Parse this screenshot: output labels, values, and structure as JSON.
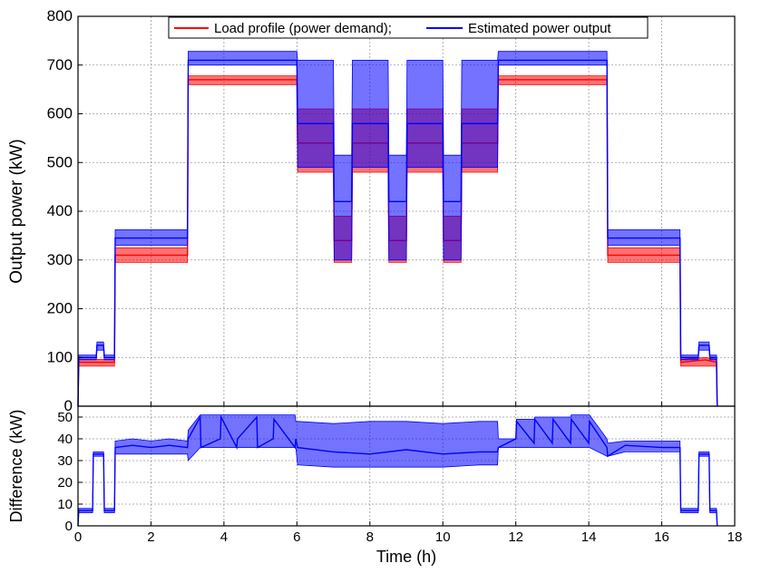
{
  "chart_data": [
    {
      "type": "line",
      "ylabel": "Output power (kW)",
      "xlim": [
        0,
        18
      ],
      "ylim": [
        0,
        800
      ],
      "xticks": [
        0,
        2,
        4,
        6,
        8,
        10,
        12,
        14,
        16,
        18
      ],
      "yticks": [
        0,
        100,
        200,
        300,
        400,
        500,
        600,
        700,
        800
      ],
      "grid": true,
      "legend_position": "top",
      "series": [
        {
          "name": "Load profile (power demand);",
          "color": "#ff0000",
          "x": [
            0,
            0.02,
            0.5,
            1.0,
            1.02,
            3.0,
            3.02,
            6.0,
            6.02,
            7.0,
            7.02,
            7.5,
            7.52,
            8.5,
            8.52,
            9.0,
            9.02,
            10.0,
            10.02,
            10.5,
            10.52,
            11.5,
            11.52,
            14.5,
            14.52,
            16.5,
            16.52,
            17.2,
            17.5,
            17.52
          ],
          "values": [
            0,
            90,
            90,
            90,
            310,
            310,
            670,
            670,
            540,
            540,
            340,
            340,
            540,
            540,
            340,
            340,
            540,
            540,
            340,
            340,
            540,
            540,
            670,
            670,
            310,
            310,
            90,
            95,
            90,
            0
          ],
          "band_low": [
            0,
            82,
            82,
            82,
            295,
            295,
            660,
            660,
            480,
            480,
            295,
            295,
            480,
            480,
            295,
            295,
            480,
            480,
            295,
            295,
            480,
            480,
            660,
            660,
            295,
            295,
            82,
            82,
            82,
            0
          ],
          "band_high": [
            0,
            96,
            96,
            96,
            325,
            325,
            678,
            678,
            610,
            610,
            390,
            390,
            610,
            610,
            390,
            390,
            610,
            610,
            390,
            390,
            610,
            610,
            678,
            678,
            325,
            325,
            96,
            100,
            96,
            0
          ]
        },
        {
          "name": "Estimated power output",
          "color": "#0000ff",
          "x": [
            0,
            0.02,
            0.5,
            0.52,
            0.7,
            0.72,
            1.0,
            1.02,
            3.0,
            3.02,
            6.0,
            6.02,
            7.0,
            7.02,
            7.5,
            7.52,
            8.5,
            8.52,
            9.0,
            9.02,
            10.0,
            10.02,
            10.5,
            10.52,
            11.5,
            11.52,
            14.5,
            14.52,
            16.5,
            16.52,
            17.0,
            17.02,
            17.3,
            17.32,
            17.5,
            17.52
          ],
          "values": [
            0,
            100,
            100,
            125,
            125,
            100,
            100,
            345,
            345,
            710,
            710,
            580,
            580,
            420,
            420,
            580,
            580,
            420,
            420,
            580,
            580,
            420,
            420,
            580,
            580,
            710,
            710,
            345,
            345,
            100,
            100,
            125,
            125,
            100,
            100,
            0
          ],
          "band_low": [
            0,
            95,
            95,
            115,
            115,
            95,
            95,
            330,
            330,
            700,
            700,
            490,
            490,
            300,
            300,
            490,
            490,
            300,
            300,
            490,
            490,
            300,
            300,
            490,
            490,
            700,
            700,
            330,
            330,
            95,
            95,
            115,
            115,
            95,
            95,
            0
          ],
          "band_high": [
            0,
            105,
            105,
            132,
            132,
            105,
            105,
            362,
            362,
            728,
            728,
            710,
            710,
            515,
            515,
            710,
            710,
            515,
            515,
            710,
            710,
            515,
            515,
            710,
            710,
            728,
            728,
            362,
            362,
            105,
            105,
            132,
            132,
            105,
            105,
            0
          ]
        }
      ]
    },
    {
      "type": "line",
      "xlabel": "Time (h)",
      "ylabel": "Difference (kW)",
      "xlim": [
        0,
        18
      ],
      "ylim": [
        0,
        55
      ],
      "xticks": [
        0,
        2,
        4,
        6,
        8,
        10,
        12,
        14,
        16,
        18
      ],
      "yticks": [
        0,
        10,
        20,
        30,
        40,
        50
      ],
      "grid": true,
      "series": [
        {
          "color": "#0000ff",
          "x": [
            0,
            0.02,
            0.4,
            0.42,
            0.7,
            0.72,
            1.0,
            1.02,
            1.5,
            2.0,
            2.5,
            3.0,
            3.02,
            3.35,
            3.37,
            3.9,
            3.92,
            4.35,
            4.37,
            4.9,
            4.92,
            5.35,
            5.37,
            5.95,
            5.97,
            6.02,
            7.0,
            8.0,
            9.0,
            10.0,
            11.0,
            11.5,
            11.52,
            12.0,
            12.02,
            12.5,
            12.52,
            13.0,
            13.02,
            13.5,
            13.52,
            14.0,
            14.02,
            14.5,
            14.52,
            15.0,
            16.0,
            16.5,
            16.52,
            17.0,
            17.02,
            17.3,
            17.32,
            17.5,
            17.52
          ],
          "values": [
            0,
            7,
            7,
            33,
            33,
            7,
            7,
            36,
            37,
            36,
            37,
            36,
            40,
            50,
            36,
            40,
            50,
            36,
            40,
            50,
            36,
            40,
            49,
            36,
            40,
            36,
            34,
            33,
            35,
            33,
            34,
            34,
            36,
            40,
            48,
            38,
            49,
            38,
            49,
            38,
            49,
            38,
            48,
            36,
            32,
            37,
            36,
            36,
            7,
            7,
            33,
            33,
            7,
            7,
            0
          ],
          "band_low": [
            0,
            6,
            6,
            32,
            32,
            6,
            6,
            33,
            33,
            33,
            33,
            33,
            30,
            36,
            36,
            36,
            36,
            36,
            36,
            36,
            36,
            36,
            36,
            36,
            36,
            28,
            27,
            27,
            27,
            27,
            28,
            28,
            36,
            36,
            36,
            36,
            36,
            36,
            36,
            36,
            36,
            36,
            36,
            32,
            32,
            34,
            34,
            34,
            6,
            6,
            32,
            32,
            6,
            6,
            0
          ],
          "band_high": [
            0,
            8,
            8,
            34,
            34,
            8,
            8,
            39,
            40,
            39,
            40,
            39,
            44,
            51,
            51,
            51,
            51,
            51,
            51,
            51,
            51,
            51,
            51,
            51,
            48,
            48,
            47,
            48,
            48,
            47,
            48,
            48,
            40,
            40,
            49,
            49,
            50,
            50,
            50,
            50,
            51,
            51,
            51,
            40,
            38,
            39,
            39,
            39,
            8,
            8,
            34,
            34,
            8,
            8,
            0
          ]
        }
      ]
    }
  ]
}
